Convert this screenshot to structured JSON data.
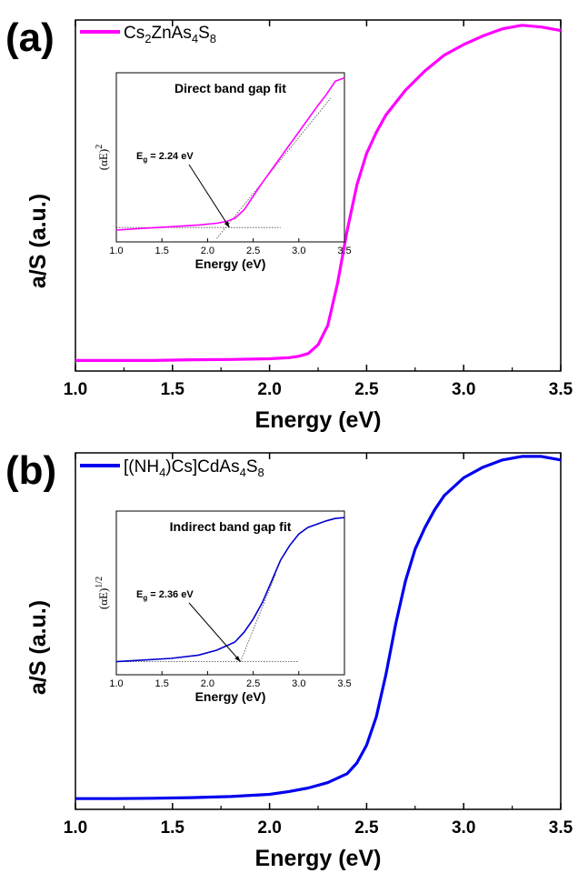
{
  "chart_data": [
    {
      "type": "line",
      "panel_label": "(a)",
      "xlabel": "Energy (eV)",
      "ylabel": "a/S (a.u.)",
      "xlim": [
        1.0,
        3.5
      ],
      "ylim": [
        0,
        1.0
      ],
      "xticks": [
        "1.0",
        "1.5",
        "2.0",
        "2.5",
        "3.0",
        "3.5"
      ],
      "legend": {
        "base": "Cs",
        "sub1": "2",
        "mid": "ZnAs",
        "sub2": "4",
        "mid2": "S",
        "sub3": "8"
      },
      "series": [
        {
          "color": "#ff00ff",
          "x": [
            1.0,
            1.2,
            1.4,
            1.6,
            1.8,
            2.0,
            2.1,
            2.15,
            2.2,
            2.25,
            2.3,
            2.35,
            2.4,
            2.45,
            2.5,
            2.55,
            2.6,
            2.7,
            2.8,
            2.9,
            3.0,
            3.1,
            3.2,
            3.3,
            3.4,
            3.5
          ],
          "y": [
            0.03,
            0.03,
            0.03,
            0.032,
            0.033,
            0.035,
            0.038,
            0.042,
            0.05,
            0.075,
            0.13,
            0.25,
            0.4,
            0.53,
            0.62,
            0.68,
            0.73,
            0.8,
            0.855,
            0.9,
            0.93,
            0.955,
            0.975,
            0.985,
            0.98,
            0.97
          ]
        }
      ],
      "inset": {
        "title": "Direct band gap fit",
        "xlabel": "Energy (eV)",
        "ylabel_base": "(αE)",
        "ylabel_exp": "2",
        "xlim": [
          1.0,
          3.5
        ],
        "xticks": [
          "1.0",
          "1.5",
          "2.0",
          "2.5",
          "3.0",
          "3.5"
        ],
        "annotation_base": "E",
        "annotation_sub": "g",
        "annotation_rest": " = 2.24 eV",
        "color": "#ff00ff",
        "x": [
          1.0,
          1.3,
          1.6,
          1.9,
          2.1,
          2.2,
          2.3,
          2.4,
          2.5,
          2.6,
          2.8,
          3.0,
          3.2,
          3.3,
          3.4,
          3.5
        ],
        "y": [
          0.07,
          0.08,
          0.09,
          0.1,
          0.11,
          0.12,
          0.14,
          0.19,
          0.27,
          0.35,
          0.5,
          0.65,
          0.8,
          0.87,
          0.95,
          0.97
        ],
        "fit_x": [
          2.1,
          3.35
        ],
        "baseline_x": [
          1.0,
          2.8
        ],
        "baseline_y": 0.085,
        "intercept": 2.24
      }
    },
    {
      "type": "line",
      "panel_label": "(b)",
      "xlabel": "Energy (eV)",
      "ylabel": "a/S (a.u.)",
      "xlim": [
        1.0,
        3.5
      ],
      "ylim": [
        0,
        1.0
      ],
      "xticks": [
        "1.0",
        "1.5",
        "2.0",
        "2.5",
        "3.0",
        "3.5"
      ],
      "legend": {
        "base": "[(NH",
        "sub1": "4",
        "mid": ")Cs]CdAs",
        "sub2": "4",
        "mid2": "S",
        "sub3": "8"
      },
      "series": [
        {
          "color": "#0000ee",
          "x": [
            1.0,
            1.2,
            1.4,
            1.6,
            1.8,
            2.0,
            2.1,
            2.2,
            2.3,
            2.4,
            2.45,
            2.5,
            2.55,
            2.6,
            2.65,
            2.7,
            2.75,
            2.8,
            2.85,
            2.9,
            3.0,
            3.1,
            3.2,
            3.3,
            3.4,
            3.5
          ],
          "y": [
            0.03,
            0.03,
            0.031,
            0.033,
            0.036,
            0.042,
            0.05,
            0.06,
            0.075,
            0.1,
            0.13,
            0.18,
            0.26,
            0.38,
            0.52,
            0.64,
            0.73,
            0.79,
            0.84,
            0.88,
            0.93,
            0.96,
            0.98,
            0.99,
            0.99,
            0.98
          ]
        }
      ],
      "inset": {
        "title": "Indirect band gap fit",
        "xlabel": "Energy (eV)",
        "ylabel_base": "(αE)",
        "ylabel_exp": "1/2",
        "xlim": [
          1.0,
          3.5
        ],
        "xticks": [
          "1.0",
          "1.5",
          "2.0",
          "2.5",
          "3.0",
          "3.5"
        ],
        "annotation_base": "E",
        "annotation_sub": "g",
        "annotation_rest": " = 2.36 eV",
        "color": "#0000cc",
        "x": [
          1.0,
          1.3,
          1.6,
          1.9,
          2.1,
          2.3,
          2.4,
          2.5,
          2.6,
          2.7,
          2.8,
          2.9,
          3.0,
          3.1,
          3.2,
          3.3,
          3.4,
          3.5
        ],
        "y": [
          0.08,
          0.09,
          0.1,
          0.12,
          0.15,
          0.2,
          0.26,
          0.34,
          0.44,
          0.57,
          0.7,
          0.79,
          0.86,
          0.9,
          0.92,
          0.94,
          0.955,
          0.96
        ],
        "fit_x": [
          2.36,
          2.75
        ],
        "baseline_x": [
          1.0,
          3.0
        ],
        "baseline_y": 0.08,
        "intercept": 2.36
      }
    }
  ]
}
